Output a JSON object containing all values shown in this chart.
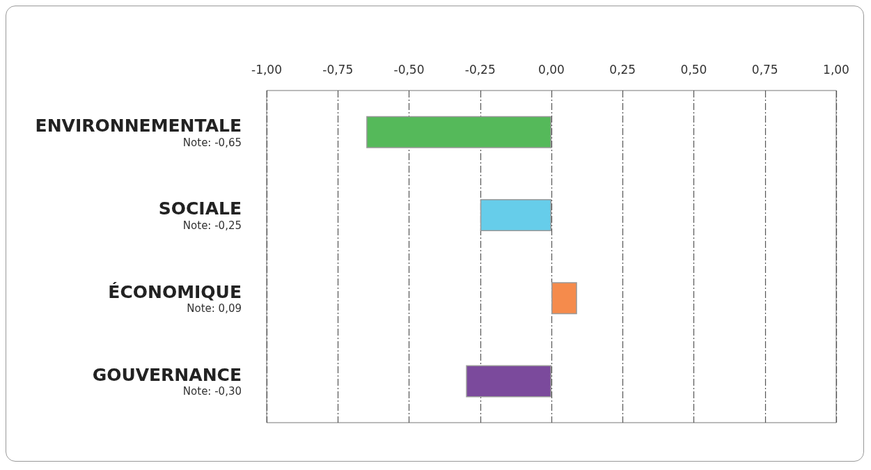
{
  "chart_data": {
    "type": "bar",
    "orientation": "horizontal",
    "categories": [
      "ENVIRONNEMENTALE",
      "SOCIALE",
      "ÉCONOMIQUE",
      "GOUVERNANCE"
    ],
    "values": [
      -0.65,
      -0.25,
      0.09,
      -0.3
    ],
    "value_labels": [
      "Note: -0,65",
      "Note: -0,25",
      "Note: 0,09",
      "Note: -0,30"
    ],
    "colors": [
      "#55b95a",
      "#66cdea",
      "#f58b4c",
      "#7b4a9c"
    ],
    "xlim": [
      -1,
      1
    ],
    "xticks": [
      {
        "value": -1,
        "label": "-1,00"
      },
      {
        "value": -0.75,
        "label": "-0,75"
      },
      {
        "value": -0.5,
        "label": "-0,50"
      },
      {
        "value": -0.25,
        "label": "-0,25"
      },
      {
        "value": 0,
        "label": "0,00"
      },
      {
        "value": 0.25,
        "label": "0,25"
      },
      {
        "value": 0.5,
        "label": "0,50"
      },
      {
        "value": 0.75,
        "label": "0,75"
      },
      {
        "value": 1,
        "label": "1,00"
      }
    ],
    "grid": "x"
  }
}
